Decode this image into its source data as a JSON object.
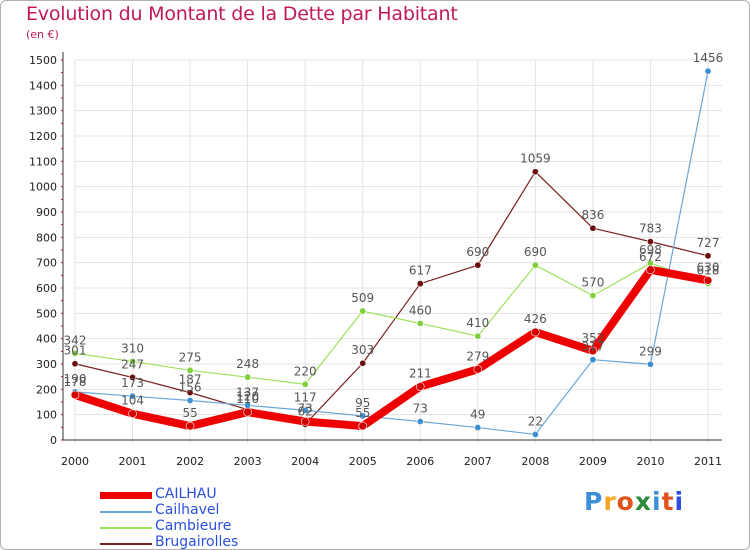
{
  "header": {
    "title": "Evolution du Montant de la Dette par Habitant",
    "unit": "(en €)"
  },
  "brand": {
    "text": "Proxiti",
    "letter_colors": [
      "#3a8fd8",
      "#f5a623",
      "#e0531c",
      "#2e8b3a",
      "#3a8fd8",
      "#e0531c",
      "#2b4fe0"
    ]
  },
  "chart_data": {
    "type": "line",
    "x": [
      2000,
      2001,
      2002,
      2003,
      2004,
      2005,
      2006,
      2007,
      2008,
      2009,
      2010,
      2011
    ],
    "ylim": [
      0,
      1500
    ],
    "yticks": [
      0,
      100,
      200,
      300,
      400,
      500,
      600,
      700,
      800,
      900,
      1000,
      1100,
      1200,
      1300,
      1400,
      1500
    ],
    "grid": true,
    "legend_position": "bottom-left",
    "series": [
      {
        "name": "Brugairolles",
        "color": "#7a1f1f",
        "marker": "#6b0f0f",
        "width": 1.2,
        "values": [
          301,
          247,
          187,
          120,
          62,
          303,
          617,
          690,
          1059,
          836,
          783,
          727
        ]
      },
      {
        "name": "Cambieure",
        "color": "#9ee05a",
        "marker": "#7ecf3a",
        "width": 1.2,
        "values": [
          342,
          310,
          275,
          248,
          220,
          509,
          460,
          410,
          690,
          570,
          698,
          618
        ]
      },
      {
        "name": "Cailhavel",
        "color": "#6aa6d6",
        "marker": "#3d8fd0",
        "width": 1.2,
        "values": [
          190,
          173,
          156,
          137,
          117,
          95,
          73,
          49,
          22,
          317,
          299,
          1456
        ]
      },
      {
        "name": "CAILHAU",
        "color": "#ee0000",
        "marker": "#d40000",
        "width": 8,
        "values": [
          178,
          104,
          55,
          110,
          73,
          55,
          211,
          279,
          426,
          352,
          672,
          630
        ]
      }
    ]
  }
}
